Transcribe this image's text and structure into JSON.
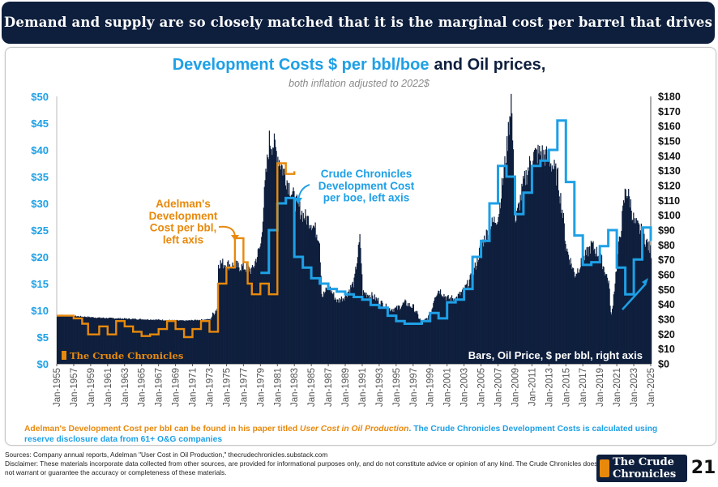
{
  "banner": {
    "text": "Demand and supply are so closely matched that it is the marginal cost per barrel that drives prices."
  },
  "chart_data": {
    "type": "bar+line",
    "title_part1": "Development Costs $ per bbl/boe",
    "title_part2": "and Oil prices,",
    "subtitle": "both inflation adjusted to 2022$",
    "left_axis": {
      "ticks": [
        "$0",
        "$5",
        "$10",
        "$15",
        "$20",
        "$25",
        "$30",
        "$35",
        "$40",
        "$45",
        "$50"
      ],
      "ylim": [
        0,
        50
      ]
    },
    "right_axis": {
      "ticks": [
        "$0",
        "$10",
        "$20",
        "$30",
        "$40",
        "$50",
        "$60",
        "$70",
        "$80",
        "$90",
        "$100",
        "$110",
        "$120",
        "$130",
        "$140",
        "$150",
        "$160",
        "$170",
        "$180"
      ],
      "ylim": [
        0,
        180
      ]
    },
    "x_ticks": [
      "Jan-1955",
      "Jan-1957",
      "Jan-1959",
      "Jan-1961",
      "Jan-1963",
      "Jan-1965",
      "Jan-1967",
      "Jan-1969",
      "Jan-1971",
      "Jan-1973",
      "Jan-1975",
      "Jan-1977",
      "Jan-1979",
      "Jan-1981",
      "Jan-1983",
      "Jan-1985",
      "Jan-1987",
      "Jan-1989",
      "Jan-1991",
      "Jan-1993",
      "Jan-1995",
      "Jan-1997",
      "Jan-1999",
      "Jan-2001",
      "Jan-2003",
      "Jan-2005",
      "Jan-2007",
      "Jan-2009",
      "Jan-2011",
      "Jan-2013",
      "Jan-2015",
      "Jan-2017",
      "Jan-2019",
      "Jan-2021",
      "Jan-2023",
      "Jan-2025"
    ],
    "xlim": [
      1955,
      2025
    ],
    "oil_price": {
      "name": "Oil Price, $ per bbl, right axis",
      "color": "#0e1f3d",
      "x": [
        1955,
        1960,
        1965,
        1970,
        1973,
        1973.9,
        1974,
        1975,
        1977,
        1978,
        1979,
        1979.5,
        1980,
        1980.5,
        1981,
        1982,
        1983,
        1984,
        1985,
        1985.9,
        1986.2,
        1987,
        1988,
        1989,
        1990,
        1990.7,
        1991,
        1992,
        1993,
        1994,
        1995,
        1996,
        1997,
        1998,
        1999,
        1999.5,
        2000,
        2001,
        2002,
        2003,
        2004,
        2005,
        2006,
        2007,
        2008,
        2008.5,
        2009,
        2010,
        2011,
        2012,
        2013,
        2014,
        2014.6,
        2015,
        2016,
        2017,
        2018,
        2019,
        2020,
        2020.3,
        2021,
        2022,
        2022.5,
        2023,
        2024,
        2025
      ],
      "values": [
        33,
        31,
        30,
        29,
        30,
        38,
        68,
        67,
        65,
        63,
        80,
        120,
        150,
        148,
        140,
        125,
        110,
        100,
        95,
        85,
        45,
        52,
        42,
        46,
        55,
        85,
        48,
        46,
        42,
        37,
        37,
        41,
        38,
        27,
        33,
        46,
        50,
        44,
        44,
        50,
        60,
        80,
        92,
        100,
        145,
        180,
        95,
        122,
        140,
        142,
        138,
        125,
        100,
        78,
        60,
        70,
        80,
        72,
        55,
        30,
        70,
        118,
        110,
        95,
        88,
        75
      ]
    },
    "adelman_cost": {
      "name": "Adelman's Development Cost per bbl, left axis",
      "color": "#e8890c",
      "x": [
        1955,
        1957,
        1958,
        1958.7,
        1960,
        1961,
        1962,
        1963,
        1964,
        1965,
        1966,
        1967,
        1968,
        1969,
        1970,
        1971,
        1972,
        1973,
        1974,
        1975,
        1976,
        1977,
        1977.5,
        1978,
        1979,
        1980,
        1981,
        1982,
        1983
      ],
      "values": [
        9,
        8.5,
        7.5,
        5.5,
        7,
        5.5,
        8,
        7,
        6,
        5.2,
        5.5,
        6.5,
        8,
        6.5,
        5,
        6.5,
        8,
        6,
        15,
        18,
        23.5,
        19,
        15,
        13,
        15,
        13,
        37.5,
        35.5,
        36
      ]
    },
    "crude_chronicles_cost": {
      "name": "Crude Chronicles Development Cost per boe, left axis",
      "color": "#1ea0e6",
      "x": [
        1979,
        1980,
        1981,
        1982,
        1983,
        1984,
        1985,
        1986,
        1987,
        1988,
        1989,
        1990,
        1991,
        1992,
        1993,
        1994,
        1995,
        1996,
        1997,
        1998,
        1999,
        2000,
        2001,
        2002,
        2003,
        2004,
        2005,
        2006,
        2007,
        2008,
        2009,
        2010,
        2011,
        2012,
        2013,
        2014,
        2015,
        2016,
        2017,
        2018,
        2019,
        2020,
        2021,
        2022,
        2023,
        2024,
        2025
      ],
      "values": [
        17,
        25,
        30,
        31,
        20,
        18,
        16,
        15,
        14,
        13.5,
        13,
        12.5,
        12,
        11,
        10.5,
        9,
        8,
        7.5,
        7.5,
        8,
        9.5,
        8.5,
        11.5,
        12,
        14,
        20,
        23,
        30,
        37,
        35,
        28,
        32,
        37,
        38,
        40,
        45.5,
        34,
        24,
        18.5,
        19,
        22,
        25,
        18,
        13,
        19.5,
        25.5,
        23
      ]
    },
    "annotations": {
      "adelman_label": "Adelman's\nDevelopment\nCost per bbl,\nleft axis",
      "crude_label": "Crude Chronicles\nDevelopment Cost\nper boe, left axis",
      "bars_label": "Bars, Oil Price, $ per bbl, right axis",
      "watermark": "The Crude Chronicles"
    }
  },
  "note": {
    "part1": "Adelman's Development Cost per bbl can be found in his paper titled",
    "part2": "User Cost in Oil Production",
    "part3": ". The Crude Chronicles Development Costs is calculated using reserve disclosure data from 61+ O&G companies"
  },
  "footer": {
    "sources": "Sources: Company annual reports, Adelman \"User Cost in Oil Production,\" thecrudechronicles.substack.com",
    "disclaimer": "Disclaimer: These materials incorporate data collected from other sources, are provided for informational purposes only, and do not constitute advice or opinion of any kind. The Crude Chronicles does not warrant or guarantee the accuracy or completeness of these materials."
  },
  "logo": {
    "line1": "The Crude",
    "line2": "Chronicles"
  },
  "page_number": "21",
  "colors": {
    "navy": "#0e1f3d",
    "orange": "#e8890c",
    "blue": "#1ea0e6"
  }
}
